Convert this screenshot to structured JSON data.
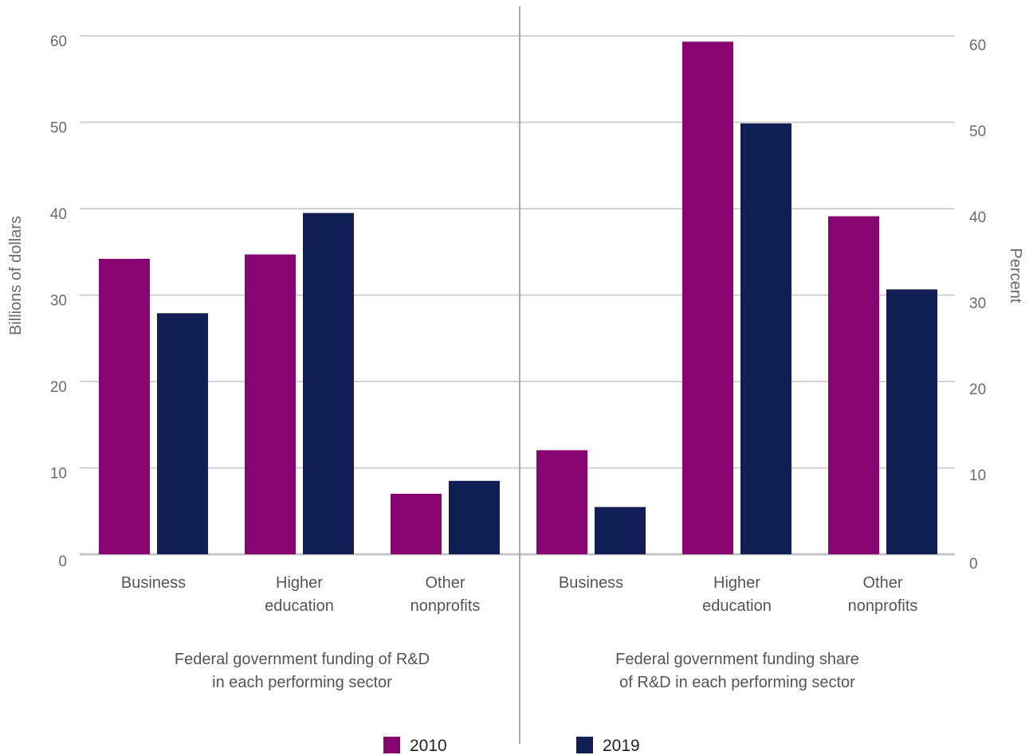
{
  "chart_data": {
    "type": "bar",
    "legend": {
      "placement": "bottom",
      "entries": [
        "2010",
        "2019"
      ]
    },
    "colors": {
      "2010": "#870471",
      "2019": "#111f55",
      "grid": "#c4c4c4",
      "divider": "#a9a9a9"
    },
    "grid": true,
    "panels": [
      {
        "title_lines": [
          "Federal government funding of R&D",
          "in each performing sector"
        ],
        "ylabel": "Billions of dollars",
        "ylim": [
          0,
          60
        ],
        "yticks": [
          0,
          10,
          20,
          30,
          40,
          50,
          60
        ],
        "categories": [
          [
            "Business"
          ],
          [
            "Higher",
            "education"
          ],
          [
            "Other",
            "nonprofits"
          ]
        ],
        "series": [
          {
            "name": "2010",
            "values": [
              34.2,
              34.7,
              7.0
            ]
          },
          {
            "name": "2019",
            "values": [
              27.9,
              39.5,
              8.5
            ]
          }
        ]
      },
      {
        "title_lines": [
          "Federal government funding share",
          "of R&D in each performing sector"
        ],
        "ylabel": "Percent",
        "ylim": [
          0,
          60
        ],
        "yticks": [
          0,
          10,
          20,
          30,
          40,
          50,
          60
        ],
        "categories": [
          [
            "Business"
          ],
          [
            "Higher",
            "education"
          ],
          [
            "Other",
            "nonprofits"
          ]
        ],
        "series": [
          {
            "name": "2010",
            "values": [
              12.1,
              59.6,
              39.3
            ]
          },
          {
            "name": "2019",
            "values": [
              5.5,
              50.1,
              30.8
            ]
          }
        ]
      }
    ]
  }
}
